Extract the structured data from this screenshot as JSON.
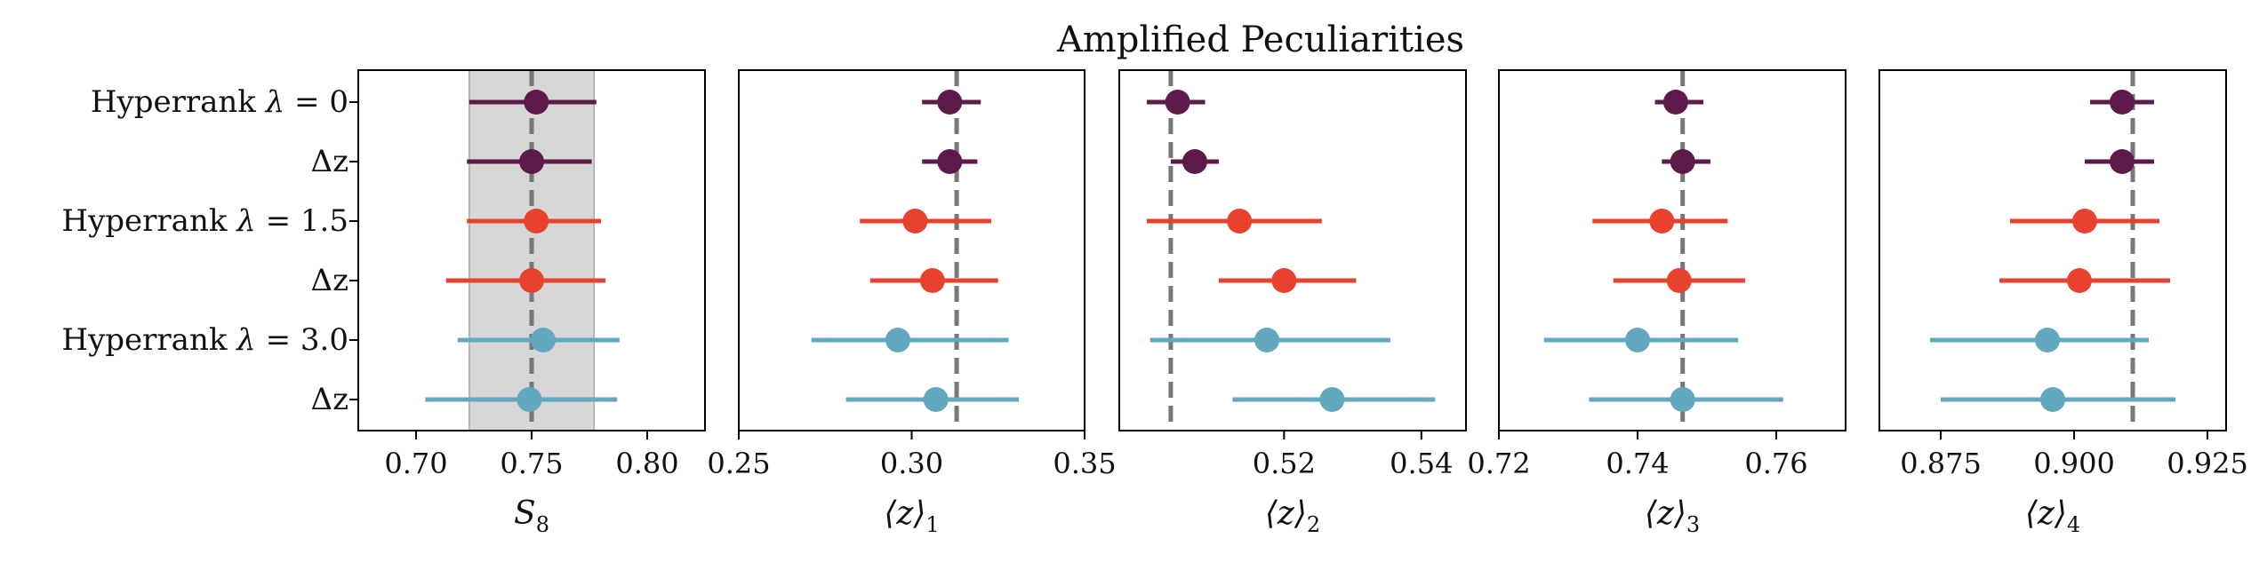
{
  "chart_data": {
    "type": "forest",
    "title": "Amplified Peculiarities",
    "row_labels": [
      {
        "prefix": "Hyperrank ",
        "lam": "λ",
        "rest": " = 0"
      },
      {
        "prefix": "",
        "lam": "",
        "rest": "Δz"
      },
      {
        "prefix": "Hyperrank ",
        "lam": "λ",
        "rest": " = 1.5"
      },
      {
        "prefix": "",
        "lam": "",
        "rest": "Δz"
      },
      {
        "prefix": "Hyperrank ",
        "lam": "λ",
        "rest": " = 3.0"
      },
      {
        "prefix": "",
        "lam": "",
        "rest": "Δz"
      }
    ],
    "row_colors": [
      "#5e1a4b",
      "#5e1a4b",
      "#e8412e",
      "#e8412e",
      "#62a8bf",
      "#62a8bf"
    ],
    "reference_line_color": "#777777",
    "band_color": "#d7d7d7",
    "panels": [
      {
        "xlabel_main": "S",
        "xlabel_sub": "8",
        "xlim": [
          0.675,
          0.825
        ],
        "ticks": [
          0.7,
          0.75,
          0.8
        ],
        "tick_labels": [
          "0.70",
          "0.75",
          "0.80"
        ],
        "reference": 0.75,
        "band": [
          0.723,
          0.777
        ],
        "points": [
          {
            "value": 0.752,
            "low": 0.723,
            "high": 0.778
          },
          {
            "value": 0.75,
            "low": 0.722,
            "high": 0.776
          },
          {
            "value": 0.752,
            "low": 0.722,
            "high": 0.78
          },
          {
            "value": 0.75,
            "low": 0.713,
            "high": 0.782
          },
          {
            "value": 0.755,
            "low": 0.718,
            "high": 0.788
          },
          {
            "value": 0.749,
            "low": 0.704,
            "high": 0.787
          }
        ]
      },
      {
        "xlabel_main": "⟨z⟩",
        "xlabel_sub": "1",
        "xlim": [
          0.25,
          0.35
        ],
        "ticks": [
          0.25,
          0.3,
          0.35
        ],
        "tick_labels": [
          "0.25",
          "0.30",
          "0.35"
        ],
        "reference": 0.313,
        "band": null,
        "points": [
          {
            "value": 0.311,
            "low": 0.303,
            "high": 0.32
          },
          {
            "value": 0.311,
            "low": 0.303,
            "high": 0.319
          },
          {
            "value": 0.301,
            "low": 0.285,
            "high": 0.323
          },
          {
            "value": 0.306,
            "low": 0.288,
            "high": 0.325
          },
          {
            "value": 0.296,
            "low": 0.271,
            "high": 0.328
          },
          {
            "value": 0.307,
            "low": 0.281,
            "high": 0.331
          }
        ]
      },
      {
        "xlabel_main": "⟨z⟩",
        "xlabel_sub": "2",
        "xlim": [
          0.496,
          0.5465
        ],
        "ticks": [
          0.52,
          0.54
        ],
        "tick_labels": [
          "0.52",
          "0.54"
        ],
        "reference": 0.5035,
        "band": null,
        "points": [
          {
            "value": 0.5045,
            "low": 0.5,
            "high": 0.5085
          },
          {
            "value": 0.507,
            "low": 0.5035,
            "high": 0.5105
          },
          {
            "value": 0.5135,
            "low": 0.5,
            "high": 0.5255
          },
          {
            "value": 0.52,
            "low": 0.5105,
            "high": 0.5305
          },
          {
            "value": 0.5175,
            "low": 0.5005,
            "high": 0.5355
          },
          {
            "value": 0.527,
            "low": 0.5125,
            "high": 0.542
          }
        ]
      },
      {
        "xlabel_main": "⟨z⟩",
        "xlabel_sub": "3",
        "xlim": [
          0.72,
          0.77
        ],
        "ticks": [
          0.72,
          0.74,
          0.76
        ],
        "tick_labels": [
          "0.72",
          "0.74",
          "0.76"
        ],
        "reference": 0.7465,
        "band": null,
        "points": [
          {
            "value": 0.7455,
            "low": 0.7425,
            "high": 0.7495
          },
          {
            "value": 0.7465,
            "low": 0.7435,
            "high": 0.7505
          },
          {
            "value": 0.7435,
            "low": 0.7335,
            "high": 0.753
          },
          {
            "value": 0.746,
            "low": 0.7365,
            "high": 0.7555
          },
          {
            "value": 0.74,
            "low": 0.7265,
            "high": 0.7545
          },
          {
            "value": 0.7465,
            "low": 0.733,
            "high": 0.761
          }
        ]
      },
      {
        "xlabel_main": "⟨z⟩",
        "xlabel_sub": "4",
        "xlim": [
          0.8635,
          0.9285
        ],
        "ticks": [
          0.875,
          0.9,
          0.925
        ],
        "tick_labels": [
          "0.875",
          "0.900",
          "0.925"
        ],
        "reference": 0.911,
        "band": null,
        "points": [
          {
            "value": 0.909,
            "low": 0.903,
            "high": 0.915
          },
          {
            "value": 0.909,
            "low": 0.902,
            "high": 0.915
          },
          {
            "value": 0.902,
            "low": 0.888,
            "high": 0.916
          },
          {
            "value": 0.901,
            "low": 0.886,
            "high": 0.918
          },
          {
            "value": 0.895,
            "low": 0.873,
            "high": 0.914
          },
          {
            "value": 0.896,
            "low": 0.875,
            "high": 0.919
          }
        ]
      }
    ]
  }
}
